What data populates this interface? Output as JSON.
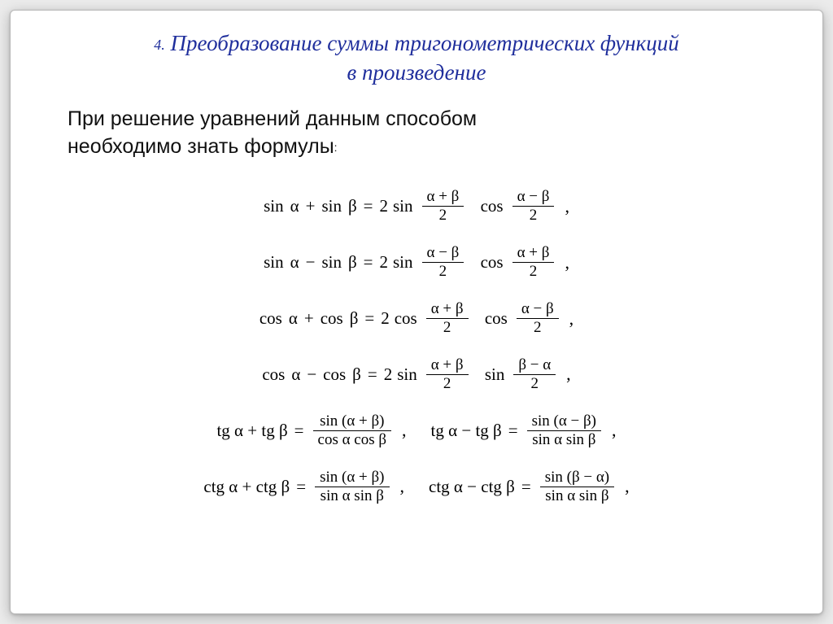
{
  "colors": {
    "page_bg": "#ebebeb",
    "slide_bg": "#ffffff",
    "slide_border": "#b8b8b8",
    "heading_color": "#1f2e9c",
    "text_color": "#111111",
    "formula_color": "#000000"
  },
  "typography": {
    "heading_fontsize": 27,
    "heading_style": "italic",
    "heading_family": "Georgia",
    "intro_fontsize": 25,
    "intro_family": "Arial",
    "formula_fontsize": 21,
    "formula_family": "Times New Roman"
  },
  "heading": {
    "number": "4.",
    "line1": "Преобразование суммы тригонометрических функций",
    "line2": "в произведение"
  },
  "intro": {
    "line1": "При решение уравнений данным способом",
    "line2_prefix": "необходимо знать формулы",
    "colon": ":"
  },
  "symbols": {
    "alpha": "α",
    "beta": "β",
    "plus": "+",
    "minus": "−",
    "equals": "=",
    "two": "2",
    "comma": ","
  },
  "fn": {
    "sin": "sin",
    "cos": "cos",
    "tg": "tg",
    "ctg": "ctg"
  },
  "formulas": {
    "f1": {
      "lhs_fn1": "sin",
      "lhs_arg1": "α",
      "lhs_op": "+",
      "lhs_fn2": "sin",
      "lhs_arg2": "β",
      "rhs_coef": "2",
      "rhs_fn1": "sin",
      "frac1_num": "α + β",
      "frac1_den": "2",
      "rhs_fn2": "cos",
      "frac2_num": "α − β",
      "frac2_den": "2"
    },
    "f2": {
      "lhs_fn1": "sin",
      "lhs_arg1": "α",
      "lhs_op": "−",
      "lhs_fn2": "sin",
      "lhs_arg2": "β",
      "rhs_coef": "2",
      "rhs_fn1": "sin",
      "frac1_num": "α − β",
      "frac1_den": "2",
      "rhs_fn2": "cos",
      "frac2_num": "α + β",
      "frac2_den": "2"
    },
    "f3": {
      "lhs_fn1": "cos",
      "lhs_arg1": "α",
      "lhs_op": "+",
      "lhs_fn2": "cos",
      "lhs_arg2": "β",
      "rhs_coef": "2",
      "rhs_fn1": "cos",
      "frac1_num": "α + β",
      "frac1_den": "2",
      "rhs_fn2": "cos",
      "frac2_num": "α − β",
      "frac2_den": "2"
    },
    "f4": {
      "lhs_fn1": "cos",
      "lhs_arg1": "α",
      "lhs_op": "−",
      "lhs_fn2": "cos",
      "lhs_arg2": "β",
      "rhs_coef": "2",
      "rhs_fn1": "sin",
      "frac1_num": "α + β",
      "frac1_den": "2",
      "rhs_fn2": "sin",
      "frac2_num": "β − α",
      "frac2_den": "2"
    },
    "f5a": {
      "lhs": "tg α + tg β",
      "frac_num": "sin (α + β)",
      "frac_den": "cos α cos β"
    },
    "f5b": {
      "lhs": "tg α − tg β",
      "frac_num": "sin (α − β)",
      "frac_den": "sin α sin β"
    },
    "f6a": {
      "lhs": "ctg α + ctg β",
      "frac_num": "sin (α + β)",
      "frac_den": "sin α sin β"
    },
    "f6b": {
      "lhs": "ctg α − ctg β",
      "frac_num": "sin (β − α)",
      "frac_den": "sin α sin β"
    }
  }
}
